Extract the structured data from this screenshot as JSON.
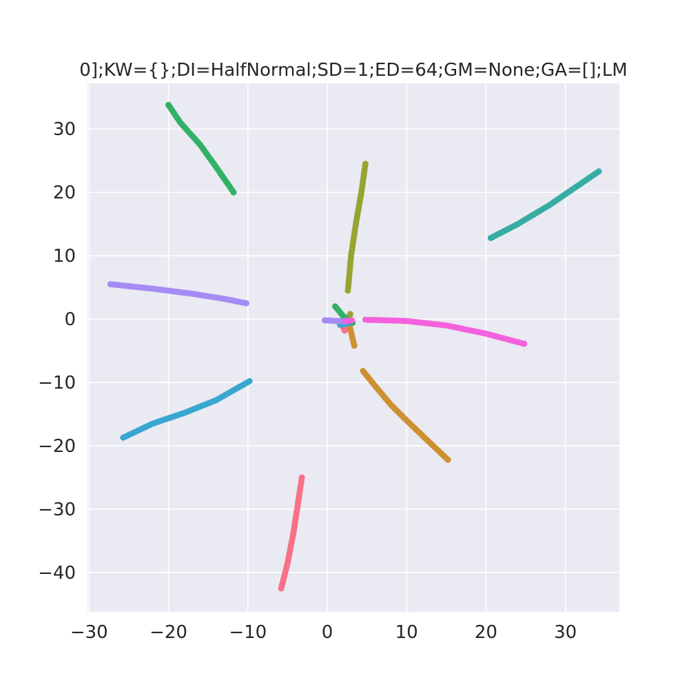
{
  "chart_data": {
    "type": "scatter",
    "title": "0];KW={};DI=HalfNormal;SD=1;ED=64;GM=None;GA=[];LM",
    "xlabel": "",
    "ylabel": "",
    "xlim": [
      -30.2,
      36.8
    ],
    "ylim": [
      -46.2,
      37.2
    ],
    "x_ticks": [
      -30,
      -20,
      -10,
      0,
      10,
      20,
      30
    ],
    "y_ticks": [
      -40,
      -30,
      -20,
      -10,
      0,
      10,
      20,
      30
    ],
    "x_tick_labels": [
      "−30",
      "−20",
      "−10",
      "0",
      "10",
      "20",
      "30"
    ],
    "y_tick_labels": [
      "−40",
      "−30",
      "−20",
      "−10",
      "0",
      "10",
      "20",
      "30"
    ],
    "grid": true,
    "legend": "none",
    "background": "#eaeaf2",
    "series": [
      {
        "color": "#f77189",
        "segments": [
          [
            [
              -3.2,
              -25.0
            ],
            [
              -3.8,
              -30.0
            ],
            [
              -4.3,
              -34.0
            ],
            [
              -5.0,
              -38.5
            ],
            [
              -5.8,
              -42.5
            ]
          ],
          [
            [
              2.2,
              -1.8
            ],
            [
              1.8,
              -0.8
            ]
          ]
        ]
      },
      {
        "color": "#ce9032",
        "segments": [
          [
            [
              4.5,
              -8.2
            ],
            [
              6.0,
              -10.5
            ],
            [
              8.0,
              -13.5
            ],
            [
              10.0,
              -16.0
            ],
            [
              12.5,
              -19.0
            ],
            [
              15.2,
              -22.2
            ]
          ],
          [
            [
              2.6,
              -0.2
            ],
            [
              3.0,
              -2.0
            ],
            [
              3.4,
              -4.2
            ]
          ]
        ]
      },
      {
        "color": "#97a431",
        "segments": [
          [
            [
              4.8,
              24.5
            ],
            [
              4.3,
              20.0
            ],
            [
              3.6,
              15.0
            ],
            [
              3.0,
              10.0
            ],
            [
              2.6,
              4.5
            ]
          ],
          [
            [
              2.9,
              0.8
            ],
            [
              2.5,
              -0.6
            ]
          ]
        ]
      },
      {
        "color": "#32b166",
        "segments": [
          [
            [
              -20.0,
              33.8
            ],
            [
              -18.5,
              31.0
            ],
            [
              -16.0,
              27.5
            ],
            [
              -14.0,
              24.0
            ],
            [
              -11.8,
              20.0
            ]
          ],
          [
            [
              1.0,
              2.0
            ],
            [
              2.0,
              0.5
            ],
            [
              3.2,
              -0.6
            ]
          ]
        ]
      },
      {
        "color": "#36ada4",
        "segments": [
          [
            [
              20.6,
              12.8
            ],
            [
              24.0,
              15.0
            ],
            [
              28.0,
              18.0
            ],
            [
              31.5,
              21.0
            ],
            [
              34.2,
              23.3
            ]
          ],
          [
            [
              1.5,
              -0.3
            ],
            [
              2.5,
              -0.6
            ]
          ]
        ]
      },
      {
        "color": "#39a7d0",
        "segments": [
          [
            [
              -25.7,
              -18.7
            ],
            [
              -22.0,
              -16.5
            ],
            [
              -18.0,
              -14.8
            ],
            [
              -14.0,
              -12.8
            ],
            [
              -9.8,
              -9.8
            ]
          ],
          [
            [
              1.6,
              -0.9
            ],
            [
              2.6,
              -0.7
            ]
          ]
        ]
      },
      {
        "color": "#a48cf4",
        "segments": [
          [
            [
              -27.3,
              5.5
            ],
            [
              -22.0,
              4.8
            ],
            [
              -17.0,
              4.0
            ],
            [
              -13.0,
              3.2
            ],
            [
              -10.2,
              2.5
            ]
          ],
          [
            [
              -0.3,
              -0.2
            ],
            [
              1.2,
              -0.3
            ],
            [
              2.3,
              -0.4
            ]
          ]
        ]
      },
      {
        "color": "#f561dd",
        "segments": [
          [
            [
              4.8,
              -0.1
            ],
            [
              10.0,
              -0.3
            ],
            [
              15.0,
              -1.0
            ],
            [
              20.0,
              -2.3
            ],
            [
              24.8,
              -3.9
            ]
          ],
          [
            [
              2.3,
              -0.3
            ],
            [
              3.1,
              -0.2
            ]
          ]
        ]
      }
    ]
  }
}
